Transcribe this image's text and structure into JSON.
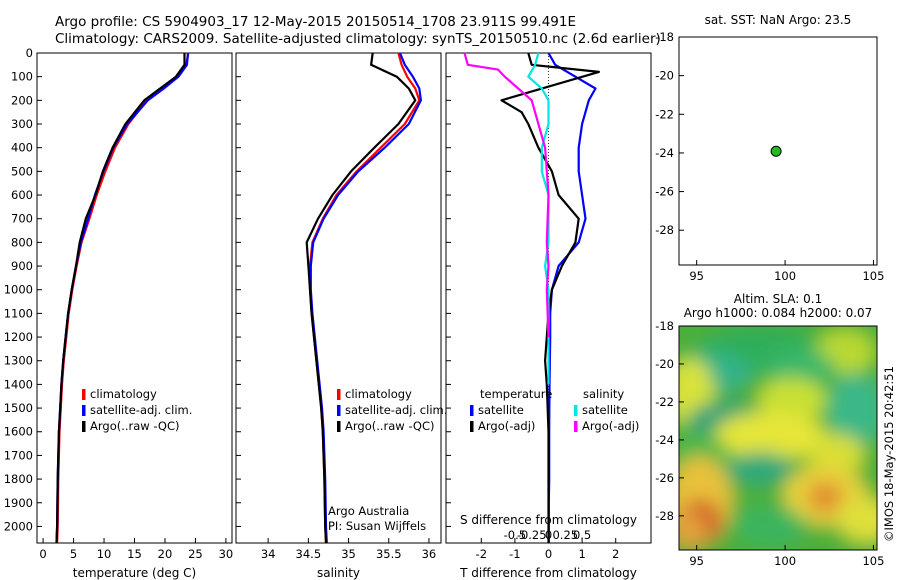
{
  "header": {
    "line1": "Argo profile: CS 5904903_17 12-May-2015 20150514_1708 23.911S 99.491E",
    "line2": "Climatology: CARS2009. Satellite-adjusted climatology: synTS_20150510.nc (2.6d earlier)"
  },
  "colors": {
    "climatology": "#ff0000",
    "satellite": "#0000ff",
    "argo": "#000000",
    "sal_satellite": "#00e5e5",
    "sal_argo": "#ff00ff",
    "float_marker": "#22bb22"
  },
  "chart_data": [
    {
      "id": "temperature",
      "type": "line",
      "xlabel": "temperature (deg C)",
      "ylabel": "",
      "xlim": [
        -1,
        31
      ],
      "ylim": [
        0,
        2070
      ],
      "y_inverted": true,
      "xticks": [
        0,
        5,
        10,
        15,
        20,
        25,
        30
      ],
      "yticks": [
        0,
        100,
        200,
        300,
        400,
        500,
        600,
        700,
        800,
        900,
        1000,
        1100,
        1200,
        1300,
        1400,
        1500,
        1600,
        1700,
        1800,
        1900,
        2000
      ],
      "legend": {
        "position": "bottom-center",
        "entries": [
          "climatology",
          "satellite-adj. clim.",
          "Argo(..raw -QC)"
        ]
      },
      "series": [
        {
          "name": "climatology",
          "color": "#ff0000",
          "x": [
            23.8,
            23.5,
            22.0,
            19.5,
            17.0,
            14.0,
            11.8,
            10.2,
            8.8,
            7.6,
            6.3,
            5.5,
            4.8,
            4.2,
            3.8,
            3.4,
            3.1,
            2.9,
            2.7,
            2.5,
            2.4,
            2.3
          ],
          "y": [
            0,
            50,
            100,
            150,
            200,
            300,
            400,
            500,
            600,
            700,
            800,
            900,
            1000,
            1100,
            1200,
            1300,
            1400,
            1500,
            1600,
            1800,
            2000,
            2070
          ]
        },
        {
          "name": "satellite-adj. clim.",
          "color": "#0000ff",
          "x": [
            23.8,
            23.6,
            22.2,
            19.8,
            17.2,
            13.8,
            11.5,
            9.9,
            8.5,
            7.4,
            6.2,
            5.4,
            4.7,
            4.1,
            3.7,
            3.3,
            3.0,
            2.8,
            2.6,
            2.4,
            2.3,
            2.2
          ],
          "y": [
            0,
            50,
            100,
            150,
            200,
            300,
            400,
            500,
            600,
            700,
            800,
            900,
            1000,
            1100,
            1200,
            1300,
            1400,
            1500,
            1600,
            1800,
            2000,
            2070
          ]
        },
        {
          "name": "Argo(..raw -QC)",
          "color": "#000000",
          "x": [
            23.2,
            23.2,
            21.8,
            19.2,
            16.6,
            13.5,
            11.4,
            9.8,
            8.6,
            7.0,
            6.0,
            5.4,
            4.7,
            4.1,
            3.7,
            3.3,
            3.0,
            2.8,
            2.6,
            2.4,
            2.3,
            2.2
          ],
          "y": [
            0,
            50,
            100,
            150,
            200,
            300,
            400,
            500,
            600,
            700,
            800,
            900,
            1000,
            1100,
            1200,
            1300,
            1400,
            1500,
            1600,
            1800,
            2000,
            2070
          ]
        }
      ]
    },
    {
      "id": "salinity",
      "type": "line",
      "xlabel": "salinity",
      "ylabel": "",
      "xlim": [
        33.6,
        36.15
      ],
      "ylim": [
        0,
        2070
      ],
      "y_inverted": true,
      "xticks": [
        34,
        34.5,
        35,
        35.5,
        36
      ],
      "xticklabels": [
        "34",
        "34.5",
        "35",
        "35.5",
        "36"
      ],
      "legend": {
        "position": "bottom-center",
        "entries": [
          "climatology",
          "satellite-adj. clim.",
          "Argo(..raw -QC)"
        ]
      },
      "annotations": [
        "Argo Australia",
        "PI: Susan Wijffels"
      ],
      "series": [
        {
          "name": "climatology",
          "color": "#ff0000",
          "x": [
            35.62,
            35.66,
            35.73,
            35.83,
            35.88,
            35.7,
            35.4,
            35.1,
            34.85,
            34.68,
            34.55,
            34.52,
            34.52,
            34.54,
            34.57,
            34.6,
            34.63,
            34.66,
            34.68,
            34.7,
            34.71,
            34.72
          ],
          "y": [
            0,
            50,
            100,
            150,
            200,
            300,
            400,
            500,
            600,
            700,
            800,
            900,
            1000,
            1100,
            1200,
            1300,
            1400,
            1500,
            1600,
            1800,
            2000,
            2070
          ]
        },
        {
          "name": "satellite-adj. clim.",
          "color": "#0000ff",
          "x": [
            35.64,
            35.7,
            35.8,
            35.88,
            35.9,
            35.75,
            35.45,
            35.12,
            34.87,
            34.69,
            34.56,
            34.53,
            34.53,
            34.55,
            34.58,
            34.61,
            34.64,
            34.67,
            34.69,
            34.71,
            34.72,
            34.73
          ],
          "y": [
            0,
            50,
            100,
            150,
            200,
            300,
            400,
            500,
            600,
            700,
            800,
            900,
            1000,
            1100,
            1200,
            1300,
            1400,
            1500,
            1600,
            1800,
            2000,
            2070
          ]
        },
        {
          "name": "Argo(..raw -QC)",
          "color": "#000000",
          "x": [
            35.3,
            35.28,
            35.6,
            35.75,
            35.83,
            35.62,
            35.32,
            35.03,
            34.8,
            34.62,
            34.48,
            34.5,
            34.52,
            34.54,
            34.57,
            34.6,
            34.63,
            34.66,
            34.68,
            34.7,
            34.71,
            34.72
          ],
          "y": [
            0,
            50,
            100,
            150,
            200,
            300,
            400,
            500,
            600,
            700,
            800,
            900,
            1000,
            1100,
            1200,
            1300,
            1400,
            1500,
            1600,
            1800,
            2000,
            2070
          ]
        }
      ]
    },
    {
      "id": "difference",
      "type": "line",
      "xlabel": "T difference from climatology",
      "top_label": "S difference from climatology",
      "xlim": [
        -3.05,
        3.05
      ],
      "ylim": [
        0,
        2070
      ],
      "y_inverted": true,
      "xticks": [
        -2,
        -1,
        0,
        1,
        2
      ],
      "xticklabels": [
        "-2",
        "-1",
        "0",
        "1",
        "2"
      ],
      "sticks": [
        -1,
        -0.5,
        0,
        0.5,
        1
      ],
      "sticklabels": [
        "-0.5",
        "-0.25",
        "0",
        "0.25",
        "0.5"
      ],
      "legend": {
        "position": "bottom-center",
        "temperature_heading": "temperature",
        "salinity_heading": "salinity",
        "entries": [
          "satellite",
          "Argo(-adj)",
          "satellite",
          "Argo(-adj)"
        ]
      },
      "series": [
        {
          "name": "satellite",
          "color": "#0000ff",
          "x": [
            0.0,
            0.2,
            0.8,
            1.4,
            1.2,
            1.0,
            0.9,
            0.9,
            1.0,
            1.1,
            0.9,
            0.3,
            0.1,
            0.05,
            0.05,
            0.03,
            0.02,
            0.02,
            0.01,
            0.01,
            0.01
          ],
          "y": [
            0,
            50,
            100,
            150,
            200,
            300,
            400,
            500,
            600,
            700,
            800,
            900,
            1000,
            1100,
            1200,
            1400,
            1600,
            1800,
            1900,
            2000,
            2070
          ]
        },
        {
          "name": "Argo(-adj)",
          "color": "#000000",
          "x": [
            -0.6,
            -0.5,
            1.5,
            -1.4,
            -0.8,
            -0.6,
            -0.3,
            0.1,
            0.3,
            0.9,
            0.8,
            0.4,
            0.1,
            0.0,
            -0.1,
            -0.05,
            0.0,
            0.0,
            0.0,
            0.0,
            0.0
          ],
          "y": [
            0,
            50,
            80,
            200,
            250,
            300,
            400,
            500,
            600,
            700,
            800,
            900,
            1000,
            1100,
            1300,
            1400,
            1600,
            1800,
            1900,
            2000,
            2070
          ]
        },
        {
          "name": "satellite",
          "color": "#00e5e5",
          "x": [
            -0.3,
            -0.4,
            -0.6,
            -0.2,
            0.0,
            0.0,
            -0.2,
            -0.2,
            0.0,
            0.0,
            0.0,
            -0.1,
            0.0,
            0.0,
            0.0
          ],
          "y": [
            0,
            50,
            100,
            150,
            200,
            300,
            400,
            500,
            600,
            700,
            800,
            900,
            1000,
            1200,
            1400
          ]
        },
        {
          "name": "Argo(-adj)",
          "color": "#ff00ff",
          "x": [
            -2.5,
            -2.4,
            -1.5,
            -1.3,
            -0.5,
            -0.3,
            -0.1,
            0.0,
            -0.05,
            0.0,
            -0.05,
            0.0
          ],
          "y": [
            0,
            50,
            70,
            100,
            200,
            300,
            400,
            600,
            800,
            900,
            1000,
            1200
          ]
        }
      ]
    },
    {
      "id": "sst_map",
      "type": "scatter",
      "title": "sat. SST: NaN Argo: 23.5",
      "xlim": [
        94,
        105.2
      ],
      "ylim": [
        -29.8,
        -18
      ],
      "xticks": [
        95,
        100,
        105
      ],
      "yticks": [
        -18,
        -20,
        -22,
        -24,
        -26,
        -28
      ],
      "points": [
        {
          "x": 99.491,
          "y": -23.911
        }
      ]
    },
    {
      "id": "sla_map",
      "type": "heatmap",
      "title_line1": "Altim. SLA: 0.1",
      "title_line2": "Argo h1000: 0.084 h2000: 0.07",
      "xlim": [
        94,
        105.2
      ],
      "ylim": [
        -29.8,
        -18
      ],
      "xticks": [
        95,
        100,
        105
      ],
      "yticks": [
        -18,
        -20,
        -22,
        -24,
        -26,
        -28
      ]
    }
  ],
  "watermark": "©IMOS 18-May-2015 20:42:51"
}
